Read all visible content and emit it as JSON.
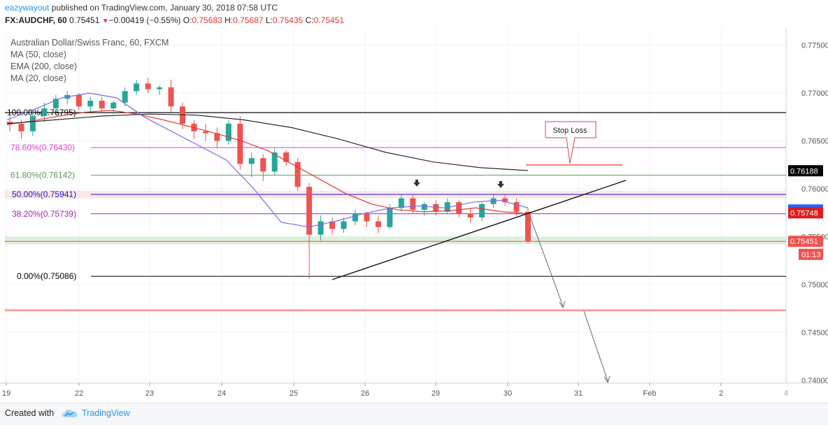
{
  "header": {
    "author": "eazywayout",
    "published_text": "published on TradingView.com, January 30, 2018 07:58 UTC",
    "symbol": "FX:AUDCHF, 60",
    "last": "0.75451",
    "change": "−0.00419 (−0.55%)",
    "o_label": "O:",
    "o_value": "0.75683",
    "h_label": "H:",
    "h_value": "0.75687",
    "l_label": "L:",
    "l_value": "0.75435",
    "c_label": "C:",
    "c_value": "0.75451"
  },
  "legend": {
    "instrument": "Australian Dollar/Swiss Franc, 60, FXCM",
    "ma50": "MA (50, close)",
    "ema200": "EMA (200, close)",
    "ma20": "MA (20, close)"
  },
  "footer": {
    "created_with": "Created with",
    "brand": "TradingView",
    "logo_icon": "tradingview-cloud-icon"
  },
  "annotations": {
    "stop_loss": "Stop Loss"
  },
  "chart_data": {
    "type": "candlestick",
    "title": "Australian Dollar/Swiss Franc, 60, FXCM",
    "xlabel": "",
    "ylabel": "",
    "ylim": [
      0.7397,
      0.7768
    ],
    "grid": true,
    "x_ticks": [
      "19",
      "22",
      "23",
      "24",
      "25",
      "26",
      "29",
      "30",
      "31",
      "Feb",
      "2"
    ],
    "y_ticks": [
      "0.77500",
      "0.77000",
      "0.76500",
      "0.76000",
      "0.75500",
      "0.75000",
      "0.74500",
      "0.74000"
    ],
    "fib_levels": [
      {
        "label": "100.00%(0.76795)",
        "value": 0.76795,
        "color": "#000000"
      },
      {
        "label": "78.60%(0.76430)",
        "value": 0.7643,
        "color": "#e040d0"
      },
      {
        "label": "61.80%(0.76142)",
        "value": 0.76142,
        "color": "#5b9a53"
      },
      {
        "label": "50.00%(0.75941)",
        "value": 0.75941,
        "color": "#1a1acc"
      },
      {
        "label": "38.20%(0.75739)",
        "value": 0.75739,
        "color": "#9c27b0"
      },
      {
        "label": "0.00%(0.75086)",
        "value": 0.75086,
        "color": "#000000"
      }
    ],
    "price_labels": [
      {
        "text": "0.76188",
        "value": 0.76188,
        "bg": "#000000",
        "fg": "#ffffff"
      },
      {
        "text": "0.75778",
        "value": 0.75778,
        "bg": "#2962ff",
        "fg": "#ffffff"
      },
      {
        "text": "0.75748",
        "value": 0.75748,
        "bg": "#e01b1b",
        "fg": "#ffffff"
      },
      {
        "text": "0.75451",
        "value": 0.75451,
        "bg": "#ef5350",
        "fg": "#ffffff"
      },
      {
        "text": "01:13",
        "value": 0.75315,
        "bg": "#ef5350",
        "fg": "#ffffff"
      }
    ],
    "candles": [
      [
        0.767,
        0.7676,
        0.766,
        0.7668
      ],
      [
        0.7668,
        0.7672,
        0.7652,
        0.766
      ],
      [
        0.766,
        0.768,
        0.7655,
        0.7676
      ],
      [
        0.7676,
        0.769,
        0.767,
        0.7684
      ],
      [
        0.7684,
        0.7698,
        0.768,
        0.7694
      ],
      [
        0.7694,
        0.7702,
        0.7688,
        0.7698
      ],
      [
        0.7698,
        0.77,
        0.7682,
        0.7686
      ],
      [
        0.7686,
        0.7696,
        0.768,
        0.7692
      ],
      [
        0.7692,
        0.7696,
        0.768,
        0.7684
      ],
      [
        0.7684,
        0.7692,
        0.7678,
        0.769
      ],
      [
        0.769,
        0.7706,
        0.7686,
        0.7702
      ],
      [
        0.7702,
        0.7714,
        0.7698,
        0.771
      ],
      [
        0.771,
        0.7716,
        0.77,
        0.7704
      ],
      [
        0.7704,
        0.7708,
        0.7698,
        0.7706
      ],
      [
        0.7706,
        0.7714,
        0.768,
        0.7686
      ],
      [
        0.7686,
        0.769,
        0.7662,
        0.7668
      ],
      [
        0.7668,
        0.7672,
        0.7652,
        0.766
      ],
      [
        0.766,
        0.7668,
        0.765,
        0.7658
      ],
      [
        0.7658,
        0.7664,
        0.7642,
        0.765
      ],
      [
        0.765,
        0.7672,
        0.7646,
        0.7668
      ],
      [
        0.7668,
        0.7676,
        0.762,
        0.7626
      ],
      [
        0.7626,
        0.7638,
        0.7612,
        0.7632
      ],
      [
        0.7632,
        0.7636,
        0.7608,
        0.7618
      ],
      [
        0.7618,
        0.7642,
        0.7614,
        0.7638
      ],
      [
        0.7638,
        0.764,
        0.7624,
        0.7628
      ],
      [
        0.7628,
        0.7632,
        0.7598,
        0.7602
      ],
      [
        0.7602,
        0.7606,
        0.7506,
        0.7552
      ],
      [
        0.7552,
        0.7572,
        0.7546,
        0.7566
      ],
      [
        0.7566,
        0.757,
        0.7552,
        0.7558
      ],
      [
        0.7558,
        0.757,
        0.7554,
        0.7566
      ],
      [
        0.7566,
        0.7578,
        0.7562,
        0.7574
      ],
      [
        0.7574,
        0.7576,
        0.756,
        0.7566
      ],
      [
        0.7566,
        0.7572,
        0.7554,
        0.756
      ],
      [
        0.756,
        0.7584,
        0.7558,
        0.758
      ],
      [
        0.758,
        0.7594,
        0.7576,
        0.759
      ],
      [
        0.759,
        0.7594,
        0.7574,
        0.7578
      ],
      [
        0.7578,
        0.7586,
        0.7572,
        0.7584
      ],
      [
        0.7584,
        0.7588,
        0.7572,
        0.7576
      ],
      [
        0.7576,
        0.759,
        0.7574,
        0.7586
      ],
      [
        0.7586,
        0.7588,
        0.757,
        0.7574
      ],
      [
        0.7574,
        0.758,
        0.7564,
        0.757
      ],
      [
        0.757,
        0.7586,
        0.7566,
        0.7584
      ],
      [
        0.7584,
        0.7594,
        0.758,
        0.759
      ],
      [
        0.759,
        0.7594,
        0.7582,
        0.7586
      ],
      [
        0.7586,
        0.759,
        0.7572,
        0.7576
      ],
      [
        0.7576,
        0.758,
        0.7543,
        0.7545
      ]
    ],
    "series": [
      {
        "name": "MA (50, close)",
        "color": "#e53935",
        "values": [
          0.7667,
          0.7671,
          0.7676,
          0.768,
          0.7682,
          0.7678,
          0.7672,
          0.7665,
          0.7658,
          0.765,
          0.764,
          0.7625,
          0.761,
          0.7595,
          0.7584,
          0.7578,
          0.7576,
          0.7577,
          0.758,
          0.7576,
          0.7574
        ]
      },
      {
        "name": "EMA (200, close)",
        "color": "#2b2b2b",
        "values": [
          0.7668,
          0.7672,
          0.7676,
          0.7678,
          0.7677,
          0.7672,
          0.7664,
          0.7652,
          0.7638,
          0.7628,
          0.7622,
          0.7619
        ]
      },
      {
        "name": "MA (20, close)",
        "color": "#7b68ee",
        "values": [
          0.7672,
          0.7683,
          0.7695,
          0.77,
          0.7695,
          0.7675,
          0.766,
          0.7645,
          0.763,
          0.76,
          0.7565,
          0.756,
          0.7566,
          0.7574,
          0.758,
          0.7582,
          0.758,
          0.7586,
          0.7588,
          0.758
        ]
      }
    ],
    "horizontal_lines": [
      {
        "value": 0.76795,
        "color": "#000000"
      },
      {
        "value": 0.75451,
        "color": "#ef5350"
      },
      {
        "value": 0.7473,
        "color": "#ef5350"
      }
    ]
  }
}
